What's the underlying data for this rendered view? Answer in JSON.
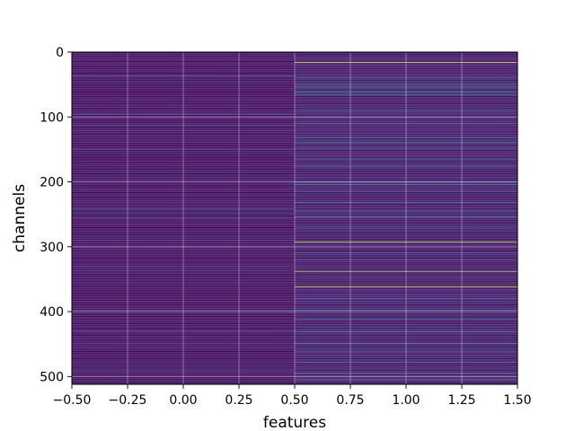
{
  "chart_data": {
    "type": "heatmap",
    "title": "",
    "xlabel": "features",
    "ylabel": "channels",
    "xlim": [
      -0.5,
      1.5
    ],
    "ylim": [
      512,
      0
    ],
    "grid": true,
    "colormap": "viridis",
    "x_ticks": [
      -0.5,
      -0.25,
      0.0,
      0.25,
      0.5,
      0.75,
      1.0,
      1.25,
      1.5
    ],
    "x_tick_labels": [
      "−0.50",
      "−0.25",
      "0.00",
      "0.25",
      "0.50",
      "0.75",
      "1.00",
      "1.25",
      "1.50"
    ],
    "y_ticks": [
      0,
      100,
      200,
      300,
      400,
      500
    ],
    "y_tick_labels": [
      "0",
      "100",
      "200",
      "300",
      "400",
      "500"
    ],
    "columns": [
      {
        "feature_index": 0,
        "background_level": 0.05,
        "highlight_rows": [
          {
            "row": 37,
            "level": 0.35
          },
          {
            "row": 96,
            "level": 0.3
          },
          {
            "row": 113,
            "level": 0.22
          },
          {
            "row": 150,
            "level": 0.2
          },
          {
            "row": 198,
            "level": 0.28
          },
          {
            "row": 242,
            "level": 0.38
          },
          {
            "row": 255,
            "level": 0.22
          },
          {
            "row": 290,
            "level": 0.2
          },
          {
            "row": 336,
            "level": 0.18
          },
          {
            "row": 398,
            "level": 0.3
          },
          {
            "row": 430,
            "level": 0.22
          },
          {
            "row": 455,
            "level": 0.2
          },
          {
            "row": 490,
            "level": 0.24
          }
        ]
      },
      {
        "feature_index": 1,
        "background_level": 0.08,
        "highlight_rows": [
          {
            "row": 16,
            "level": 0.95
          },
          {
            "row": 40,
            "level": 0.4
          },
          {
            "row": 50,
            "level": 0.45
          },
          {
            "row": 54,
            "level": 0.5
          },
          {
            "row": 62,
            "level": 0.6
          },
          {
            "row": 66,
            "level": 0.45
          },
          {
            "row": 90,
            "level": 0.35
          },
          {
            "row": 110,
            "level": 0.3
          },
          {
            "row": 132,
            "level": 0.38
          },
          {
            "row": 140,
            "level": 0.42
          },
          {
            "row": 148,
            "level": 0.35
          },
          {
            "row": 165,
            "level": 0.3
          },
          {
            "row": 176,
            "level": 0.32
          },
          {
            "row": 200,
            "level": 0.55
          },
          {
            "row": 204,
            "level": 0.45
          },
          {
            "row": 215,
            "level": 0.3
          },
          {
            "row": 232,
            "level": 0.4
          },
          {
            "row": 245,
            "level": 0.42
          },
          {
            "row": 254,
            "level": 0.55
          },
          {
            "row": 270,
            "level": 0.3
          },
          {
            "row": 293,
            "level": 0.92
          },
          {
            "row": 309,
            "level": 0.35
          },
          {
            "row": 320,
            "level": 0.3
          },
          {
            "row": 338,
            "level": 0.88
          },
          {
            "row": 362,
            "level": 0.93
          },
          {
            "row": 380,
            "level": 0.35
          },
          {
            "row": 398,
            "level": 0.45
          },
          {
            "row": 412,
            "level": 0.38
          },
          {
            "row": 431,
            "level": 0.35
          },
          {
            "row": 449,
            "level": 0.42
          },
          {
            "row": 462,
            "level": 0.5
          },
          {
            "row": 478,
            "level": 0.35
          },
          {
            "row": 495,
            "level": 0.4
          },
          {
            "row": 505,
            "level": 0.45
          }
        ]
      }
    ]
  }
}
